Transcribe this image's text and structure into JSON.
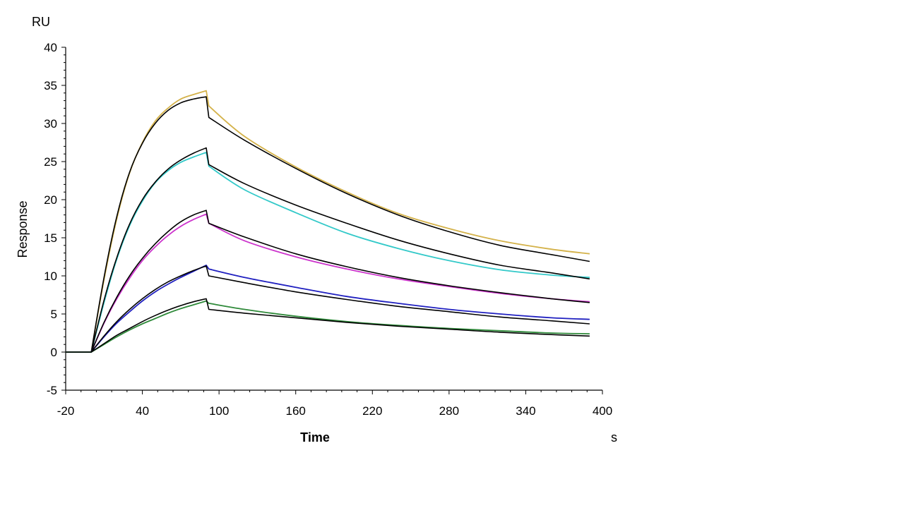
{
  "chart_data": {
    "type": "line",
    "title": "",
    "xlabel": "Time",
    "xunit": "s",
    "ylabel": "Response",
    "yunit": "RU",
    "xlim": [
      -20,
      400
    ],
    "ylim": [
      -5,
      40
    ],
    "xticks": [
      -20,
      40,
      100,
      160,
      220,
      280,
      340,
      400
    ],
    "yticks": [
      -5,
      0,
      5,
      10,
      15,
      20,
      25,
      30,
      35,
      40
    ],
    "grid": false,
    "legend": "none",
    "injection": {
      "start": 0,
      "end": 90
    },
    "series": [
      {
        "kind": "measured",
        "color": "#d4b24a",
        "x": [
          -20,
          0,
          10,
          20,
          30,
          40,
          50,
          60,
          70,
          80,
          90,
          92,
          120,
          160,
          200,
          240,
          280,
          320,
          360,
          390
        ],
        "y": [
          0,
          0,
          9.5,
          17.5,
          23.5,
          27.5,
          30.3,
          32.0,
          33.2,
          33.8,
          34.3,
          32.3,
          28.3,
          24.3,
          21.0,
          18.2,
          16.2,
          14.6,
          13.5,
          12.9
        ]
      },
      {
        "kind": "fit",
        "color": "#000000",
        "x": [
          -20,
          0,
          10,
          20,
          30,
          40,
          50,
          60,
          70,
          80,
          90,
          92,
          120,
          160,
          200,
          240,
          280,
          320,
          360,
          390
        ],
        "y": [
          0,
          0,
          9.8,
          17.8,
          23.6,
          27.4,
          30.0,
          31.7,
          32.7,
          33.2,
          33.5,
          30.8,
          27.8,
          24.1,
          20.8,
          18.0,
          15.8,
          14.0,
          12.8,
          11.9
        ]
      },
      {
        "kind": "measured",
        "color": "#33c9c9",
        "x": [
          -20,
          0,
          10,
          20,
          30,
          40,
          50,
          60,
          70,
          80,
          90,
          92,
          120,
          160,
          200,
          240,
          280,
          320,
          360,
          390
        ],
        "y": [
          0,
          0,
          6.5,
          12.2,
          16.6,
          19.8,
          22.2,
          23.8,
          24.9,
          25.6,
          26.2,
          24.4,
          21.3,
          18.3,
          15.6,
          13.6,
          12.0,
          10.8,
          10.1,
          9.8
        ]
      },
      {
        "kind": "fit",
        "color": "#000000",
        "x": [
          -20,
          0,
          10,
          20,
          30,
          40,
          50,
          60,
          70,
          80,
          90,
          92,
          120,
          160,
          200,
          240,
          280,
          320,
          360,
          390
        ],
        "y": [
          0,
          0,
          6.8,
          12.4,
          16.8,
          20.0,
          22.3,
          24.0,
          25.2,
          26.1,
          26.8,
          24.6,
          22.1,
          19.3,
          16.9,
          14.7,
          12.9,
          11.4,
          10.4,
          9.6
        ]
      },
      {
        "kind": "measured",
        "color": "#cc33cc",
        "x": [
          -20,
          0,
          10,
          20,
          30,
          40,
          50,
          60,
          70,
          80,
          90,
          92,
          120,
          160,
          200,
          240,
          280,
          320,
          360,
          390
        ],
        "y": [
          0,
          0,
          3.8,
          7.0,
          9.7,
          12.0,
          13.8,
          15.3,
          16.5,
          17.4,
          18.1,
          16.9,
          14.6,
          12.5,
          10.9,
          9.6,
          8.6,
          7.7,
          7.0,
          6.6
        ]
      },
      {
        "kind": "fit",
        "color": "#000000",
        "x": [
          -20,
          0,
          10,
          20,
          30,
          40,
          50,
          60,
          70,
          80,
          90,
          92,
          120,
          160,
          200,
          240,
          280,
          320,
          360,
          390
        ],
        "y": [
          0,
          0,
          3.9,
          7.2,
          10.0,
          12.3,
          14.2,
          15.8,
          17.1,
          18.0,
          18.6,
          16.9,
          15.1,
          12.9,
          11.2,
          9.8,
          8.7,
          7.8,
          7.0,
          6.5
        ]
      },
      {
        "kind": "measured",
        "color": "#2020c0",
        "x": [
          -20,
          0,
          10,
          20,
          30,
          40,
          50,
          60,
          70,
          80,
          90,
          92,
          120,
          160,
          200,
          240,
          280,
          320,
          360,
          390
        ],
        "y": [
          0,
          0,
          2.0,
          3.8,
          5.3,
          6.7,
          7.9,
          8.9,
          9.8,
          10.6,
          11.4,
          10.9,
          9.8,
          8.5,
          7.3,
          6.4,
          5.6,
          5.0,
          4.5,
          4.3
        ]
      },
      {
        "kind": "fit",
        "color": "#000000",
        "x": [
          -20,
          0,
          10,
          20,
          30,
          40,
          50,
          60,
          70,
          80,
          90,
          92,
          120,
          160,
          200,
          240,
          280,
          320,
          360,
          390
        ],
        "y": [
          0,
          0,
          2.1,
          4.0,
          5.6,
          7.0,
          8.2,
          9.2,
          10.0,
          10.7,
          11.3,
          10.0,
          9.1,
          7.9,
          6.9,
          6.0,
          5.3,
          4.6,
          4.1,
          3.7
        ]
      },
      {
        "kind": "measured",
        "color": "#2f8a3a",
        "x": [
          -20,
          0,
          10,
          20,
          30,
          40,
          50,
          60,
          70,
          80,
          90,
          92,
          120,
          160,
          200,
          240,
          280,
          320,
          360,
          390
        ],
        "y": [
          0,
          0,
          1.0,
          2.0,
          2.9,
          3.7,
          4.4,
          5.1,
          5.7,
          6.2,
          6.7,
          6.4,
          5.6,
          4.7,
          4.0,
          3.5,
          3.1,
          2.8,
          2.5,
          2.4
        ]
      },
      {
        "kind": "fit",
        "color": "#000000",
        "x": [
          -20,
          0,
          10,
          20,
          30,
          40,
          50,
          60,
          70,
          80,
          90,
          92,
          120,
          160,
          200,
          240,
          280,
          320,
          360,
          390
        ],
        "y": [
          0,
          0,
          1.1,
          2.2,
          3.1,
          4.0,
          4.8,
          5.5,
          6.1,
          6.6,
          7.0,
          5.6,
          5.1,
          4.5,
          3.9,
          3.4,
          3.0,
          2.6,
          2.3,
          2.1
        ]
      }
    ]
  }
}
